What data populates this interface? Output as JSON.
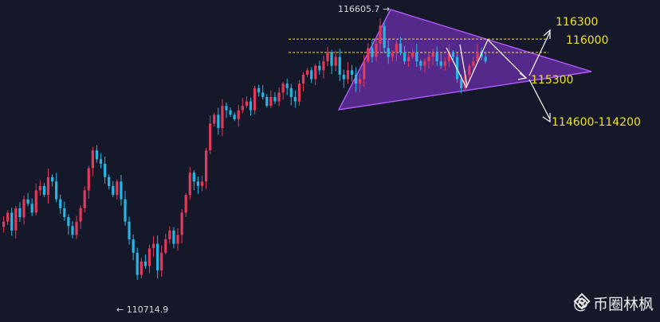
{
  "chart_data": {
    "type": "candlestick",
    "colors": {
      "up": "#e23a5a",
      "down": "#27b5e3",
      "background": "#141829",
      "triangle_fill": "#7e33c7",
      "triangle_edge": "#b45cff",
      "level_line": "#f2e21b",
      "arrows": "#ffffff"
    },
    "price_range": [
      110300,
      117000
    ],
    "extremes": {
      "high_label": "116605.7",
      "low_label": "110714.9"
    },
    "levels": [
      {
        "label": "116300",
        "value": 116300,
        "line": true
      },
      {
        "label": "116000",
        "value": 116000,
        "line": true
      },
      {
        "label": "115300",
        "value": 115300,
        "line": false
      },
      {
        "label": "114600-114200",
        "value": 114400,
        "line": false
      }
    ],
    "closes": [
      112200,
      112400,
      112000,
      112500,
      112300,
      112700,
      112600,
      112400,
      112900,
      113000,
      112800,
      113200,
      113100,
      112700,
      112500,
      112300,
      112100,
      111900,
      112200,
      112500,
      112900,
      113400,
      113800,
      113600,
      113500,
      113200,
      113000,
      112800,
      113100,
      112700,
      112200,
      111800,
      111500,
      111000,
      111300,
      111200,
      111600,
      111700,
      111100,
      111500,
      111800,
      112000,
      111700,
      111900,
      112400,
      112800,
      113300,
      113100,
      113000,
      113100,
      113800,
      114400,
      114600,
      114300,
      114800,
      114700,
      114600,
      114500,
      114700,
      114800,
      114900,
      114700,
      115200,
      115100,
      115000,
      114800,
      115000,
      114900,
      115100,
      115300,
      115200,
      115000,
      114900,
      115300,
      115500,
      115600,
      115400,
      115700,
      115600,
      115800,
      116000,
      115700,
      115900,
      115500,
      115400,
      115600,
      115500,
      115300,
      115400,
      115800,
      116100,
      115900,
      116200,
      116600,
      116100,
      115900,
      116000,
      116200,
      116000,
      115800,
      115900,
      116000,
      115800,
      115700,
      115800,
      115900,
      116000,
      115800,
      115700,
      115800,
      116000,
      115900,
      115400,
      115200,
      115500,
      115700,
      115800,
      116000,
      115900,
      115800
    ]
  },
  "watermark": {
    "brand": "币圈林枫",
    "at_sign": "@",
    "logo_icon": "binance-diamond-icon"
  }
}
